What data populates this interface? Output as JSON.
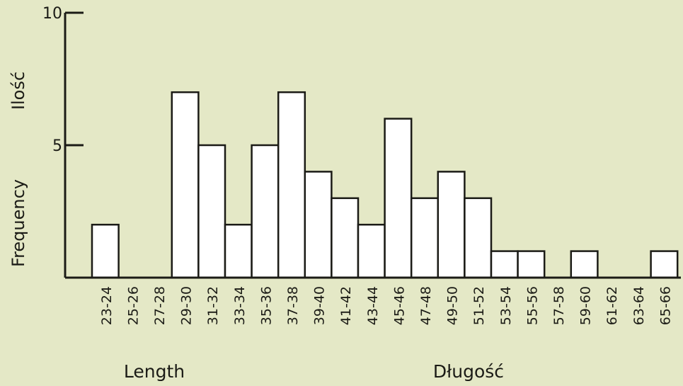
{
  "colors": {
    "paper": "#e4e8c6",
    "ink": "#1b1b16",
    "bar_fill": "#ffffff"
  },
  "chart_data": {
    "type": "bar",
    "categories": [
      "23-24",
      "25-26",
      "27-28",
      "29-30",
      "31-32",
      "33-34",
      "35-36",
      "37-38",
      "39-40",
      "41-42",
      "43-44",
      "45-46",
      "47-48",
      "49-50",
      "51-52",
      "53-54",
      "55-56",
      "57-58",
      "59-60",
      "61-62",
      "63-64",
      "65-66"
    ],
    "values": [
      2,
      0,
      0,
      7,
      5,
      2,
      5,
      7,
      4,
      3,
      2,
      6,
      3,
      4,
      3,
      1,
      1,
      0,
      1,
      0,
      0,
      1
    ],
    "yticks": [
      "5",
      "10"
    ],
    "ylim": [
      0,
      10
    ],
    "ylabel_en": "Frequency",
    "ylabel_pl": "Ilość",
    "xlabel_en": "Length",
    "xlabel_pl": "Długość",
    "grid": false,
    "legend": "none"
  }
}
